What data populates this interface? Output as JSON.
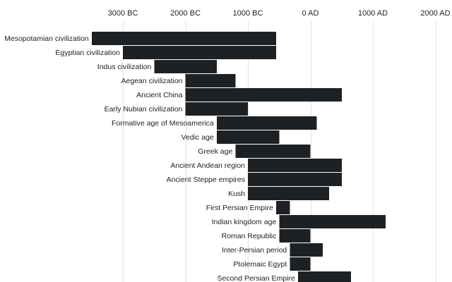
{
  "colors": {
    "bar": "#1e2124",
    "background": "#ffffff",
    "grid": "#e3e3e3"
  },
  "chart_data": {
    "type": "bar",
    "orientation": "horizontal-range",
    "grid": true,
    "xlim": [
      -4000,
      2200
    ],
    "x_ticks": [
      {
        "value": -3000,
        "label": "3000 BC"
      },
      {
        "value": -2000,
        "label": "2000 BC"
      },
      {
        "value": -1000,
        "label": "1000 BC"
      },
      {
        "value": 0,
        "label": "0 AD"
      },
      {
        "value": 1000,
        "label": "1000 AD"
      },
      {
        "value": 2000,
        "label": "2000 AD"
      }
    ],
    "categories": [
      "Mesopotamian civilization",
      "Egyptian civilization",
      "Indus civilization",
      "Aegean civilization",
      "Ancient China",
      "Early Nubian civilization",
      "Formative age of Mesoamerica",
      "Vedic age",
      "Greek age",
      "Ancient Andean region",
      "Ancient Steppe empires",
      "Kush",
      "First Persian Empire",
      "Indian kingdom age",
      "Roman Republic",
      "Inter-Persian period",
      "Ptolemaic Egypt",
      "Second Persian Empire"
    ],
    "ranges": [
      [
        -3500,
        -550
      ],
      [
        -3000,
        -550
      ],
      [
        -2500,
        -1500
      ],
      [
        -2000,
        -1200
      ],
      [
        -2000,
        500
      ],
      [
        -2000,
        -1000
      ],
      [
        -1500,
        100
      ],
      [
        -1500,
        -500
      ],
      [
        -1200,
        0
      ],
      [
        -1000,
        500
      ],
      [
        -1000,
        500
      ],
      [
        -1000,
        300
      ],
      [
        -550,
        -330
      ],
      [
        -500,
        1200
      ],
      [
        -500,
        0
      ],
      [
        -330,
        200
      ],
      [
        -330,
        0
      ],
      [
        -200,
        650
      ]
    ]
  }
}
